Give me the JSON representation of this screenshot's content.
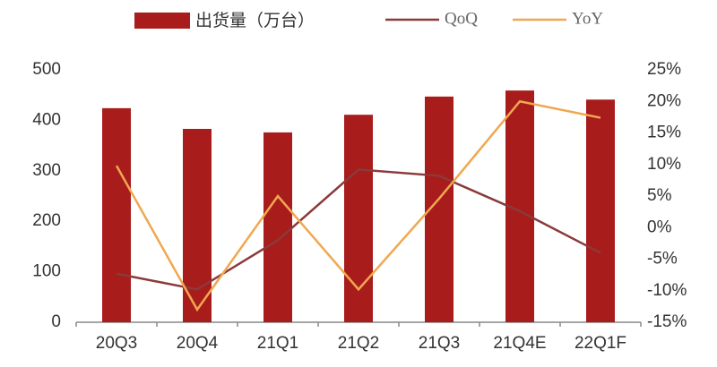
{
  "chart_data": {
    "type": "bar_line",
    "categories": [
      "20Q3",
      "20Q4",
      "21Q1",
      "21Q2",
      "21Q3",
      "21Q4E",
      "22Q1F"
    ],
    "series": [
      {
        "name": "出货量（万台）",
        "type": "bar",
        "color": "#a81c1c",
        "values": [
          424,
          383,
          376,
          411,
          447,
          459,
          441
        ]
      },
      {
        "name": "QoQ",
        "type": "line",
        "axis": "y2",
        "color": "#8b3a3a",
        "values": [
          -7.3,
          -9.8,
          -2,
          9.2,
          8.2,
          2.6,
          -4
        ]
      },
      {
        "name": "YoY",
        "type": "line",
        "axis": "y2",
        "color": "#f0a850",
        "values": [
          9.8,
          -13,
          5,
          -9.8,
          4.6,
          20,
          17.4
        ]
      }
    ],
    "ylim": [
      0,
      500
    ],
    "yticks": [
      0,
      100,
      200,
      300,
      400,
      500
    ],
    "y2lim": [
      -15,
      25
    ],
    "y2ticks": [
      {
        "value": -15,
        "label": "-15%"
      },
      {
        "value": -10,
        "label": "-10%"
      },
      {
        "value": -5,
        "label": "-5%"
      },
      {
        "value": 0,
        "label": "0%"
      },
      {
        "value": 5,
        "label": "5%"
      },
      {
        "value": 10,
        "label": "10%"
      },
      {
        "value": 15,
        "label": "15%"
      },
      {
        "value": 20,
        "label": "20%"
      },
      {
        "value": 25,
        "label": "25%"
      }
    ]
  }
}
